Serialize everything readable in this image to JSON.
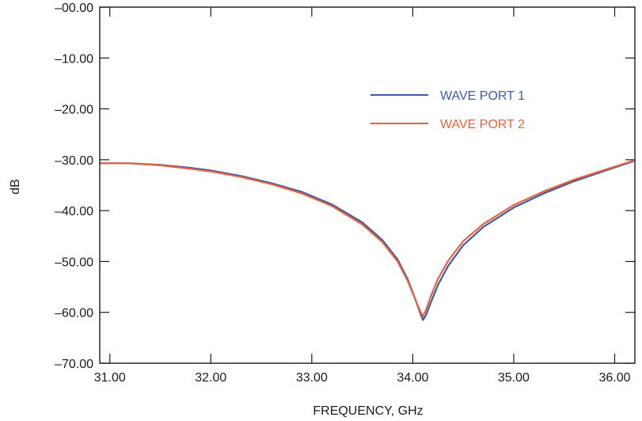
{
  "chart_data": {
    "type": "line",
    "title": "",
    "xlabel": "FREQUENCY, GHz",
    "ylabel": "dB",
    "xlim": [
      30.9,
      36.2
    ],
    "ylim": [
      -70,
      0
    ],
    "x_ticks": [
      31,
      32,
      33,
      34,
      35,
      36
    ],
    "x_tick_labels": [
      "31.00",
      "32.00",
      "33.00",
      "34.00",
      "35.00",
      "36.00"
    ],
    "y_ticks": [
      0,
      -10,
      -20,
      -30,
      -40,
      -50,
      -60,
      -70
    ],
    "y_tick_labels": [
      "–00.00",
      "–10.00",
      "–20.00",
      "–30.00",
      "–40.00",
      "–50.00",
      "–60.00",
      "–70.00"
    ],
    "grid": false,
    "legend_position": "top-right",
    "series": [
      {
        "name": "WAVE PORT 1",
        "color": "#3c5aa6",
        "x": [
          30.9,
          31.2,
          31.5,
          31.8,
          32.0,
          32.3,
          32.6,
          32.9,
          33.2,
          33.5,
          33.7,
          33.85,
          33.95,
          34.02,
          34.07,
          34.1,
          34.13,
          34.18,
          34.25,
          34.35,
          34.5,
          34.7,
          35.0,
          35.3,
          35.6,
          35.9,
          36.2
        ],
        "y": [
          -30.7,
          -30.7,
          -31.0,
          -31.6,
          -32.1,
          -33.2,
          -34.6,
          -36.3,
          -38.8,
          -42.3,
          -45.8,
          -49.6,
          -53.5,
          -57.1,
          -59.9,
          -61.5,
          -60.6,
          -58.0,
          -54.6,
          -50.9,
          -46.8,
          -43.2,
          -39.4,
          -36.6,
          -34.2,
          -32.2,
          -30.2
        ]
      },
      {
        "name": "WAVE PORT 2",
        "color": "#e8603c",
        "x": [
          30.9,
          31.2,
          31.5,
          31.8,
          32.0,
          32.3,
          32.6,
          32.9,
          33.2,
          33.5,
          33.7,
          33.85,
          33.95,
          34.02,
          34.07,
          34.1,
          34.13,
          34.18,
          34.25,
          34.35,
          34.5,
          34.7,
          35.0,
          35.3,
          35.6,
          35.9,
          36.2
        ],
        "y": [
          -30.7,
          -30.7,
          -31.1,
          -31.8,
          -32.3,
          -33.4,
          -34.8,
          -36.6,
          -39.1,
          -42.7,
          -46.2,
          -50.0,
          -53.8,
          -57.2,
          -59.6,
          -60.8,
          -59.6,
          -56.8,
          -53.4,
          -49.9,
          -46.0,
          -42.6,
          -38.9,
          -36.2,
          -33.9,
          -32.0,
          -30.1
        ]
      }
    ]
  }
}
